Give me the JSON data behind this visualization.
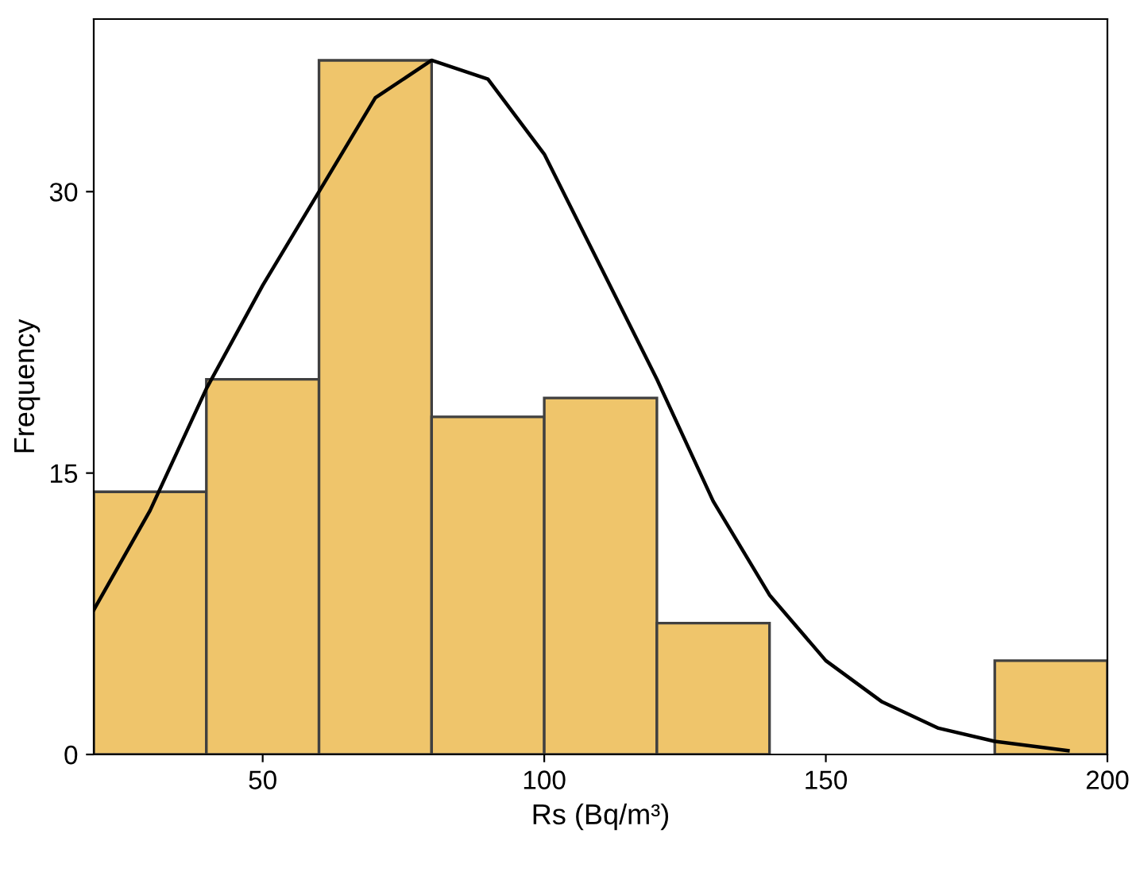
{
  "chart_data": {
    "type": "histogram",
    "xlabel": "Rs (Bq/m³)",
    "ylabel": "Frequency",
    "bins": [
      20,
      40,
      60,
      80,
      100,
      120,
      140,
      160,
      180,
      200
    ],
    "values": [
      14,
      20,
      37,
      18,
      19,
      7,
      0,
      0,
      5
    ],
    "color": "#efc56b",
    "series": [
      {
        "type": "line",
        "color": "#000000",
        "x": [
          20,
          30,
          40,
          50,
          60,
          70,
          80,
          90,
          100,
          110,
          120,
          130,
          140,
          150,
          160,
          170,
          180,
          193
        ],
        "values": [
          7.7,
          13,
          19.5,
          25,
          30,
          35,
          37,
          36,
          32,
          26,
          20,
          13.5,
          8.5,
          5,
          2.8,
          1.4,
          0.7,
          0.2
        ]
      }
    ],
    "xlim": [
      20,
      200
    ],
    "ylim": [
      0,
      39.2
    ],
    "xticks": [
      50,
      100,
      150,
      200
    ],
    "yticks": [
      0,
      15,
      30
    ],
    "grid": false
  }
}
